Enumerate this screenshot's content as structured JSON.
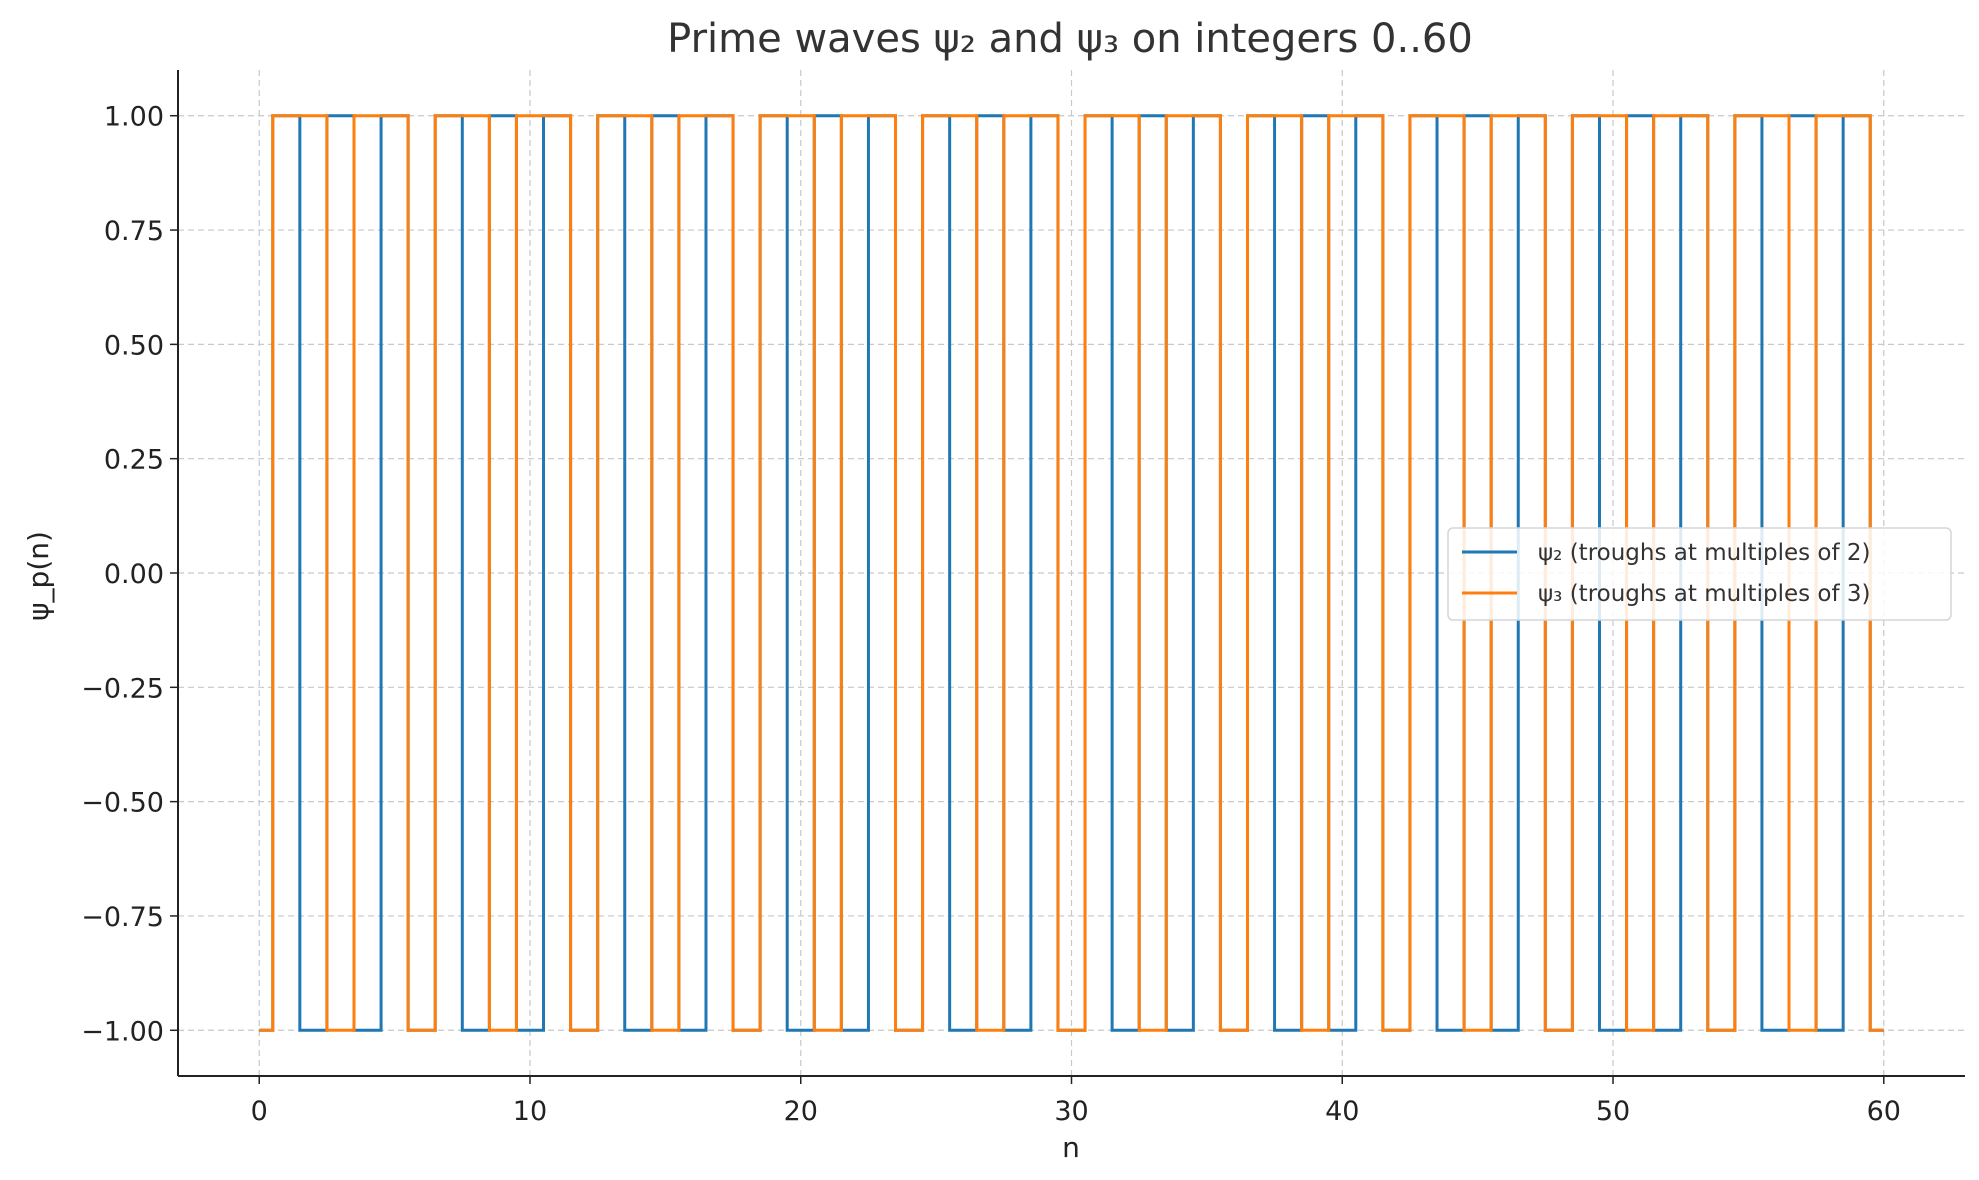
{
  "chart_data": {
    "type": "line",
    "step": "mid",
    "title": "Prime waves ψ₂ and ψ₃ on integers 0..60",
    "xlabel": "n",
    "ylabel": "ψ_p(n)",
    "xlim": [
      -3,
      63
    ],
    "ylim": [
      -1.1,
      1.1
    ],
    "x_ticks": [
      0,
      10,
      20,
      30,
      40,
      50,
      60
    ],
    "x_tick_labels": [
      "0",
      "10",
      "20",
      "30",
      "40",
      "50",
      "60"
    ],
    "y_ticks": [
      1.0,
      0.75,
      0.5,
      0.25,
      0.0,
      -0.25,
      -0.5,
      -0.75,
      -1.0
    ],
    "y_tick_labels": [
      "1.00",
      "0.75",
      "0.50",
      "0.25",
      "0.00",
      "−0.25",
      "−0.50",
      "−0.75",
      "−1.00"
    ],
    "grid": true,
    "legend_position": "center-right",
    "x": [
      0,
      1,
      2,
      3,
      4,
      5,
      6,
      7,
      8,
      9,
      10,
      11,
      12,
      13,
      14,
      15,
      16,
      17,
      18,
      19,
      20,
      21,
      22,
      23,
      24,
      25,
      26,
      27,
      28,
      29,
      30,
      31,
      32,
      33,
      34,
      35,
      36,
      37,
      38,
      39,
      40,
      41,
      42,
      43,
      44,
      45,
      46,
      47,
      48,
      49,
      50,
      51,
      52,
      53,
      54,
      55,
      56,
      57,
      58,
      59,
      60
    ],
    "series": [
      {
        "name": "ψ₂ (troughs at multiples of 2)",
        "color": "#1f77b4",
        "values": [
          -1,
          1,
          -1,
          1,
          -1,
          1,
          -1,
          1,
          -1,
          1,
          -1,
          1,
          -1,
          1,
          -1,
          1,
          -1,
          1,
          -1,
          1,
          -1,
          1,
          -1,
          1,
          -1,
          1,
          -1,
          1,
          -1,
          1,
          -1,
          1,
          -1,
          1,
          -1,
          1,
          -1,
          1,
          -1,
          1,
          -1,
          1,
          -1,
          1,
          -1,
          1,
          -1,
          1,
          -1,
          1,
          -1,
          1,
          -1,
          1,
          -1,
          1,
          -1,
          1,
          -1,
          1,
          -1
        ]
      },
      {
        "name": "ψ₃ (troughs at multiples of 3)",
        "color": "#ff7f0e",
        "values": [
          -1,
          1,
          1,
          -1,
          1,
          1,
          -1,
          1,
          1,
          -1,
          1,
          1,
          -1,
          1,
          1,
          -1,
          1,
          1,
          -1,
          1,
          1,
          -1,
          1,
          1,
          -1,
          1,
          1,
          -1,
          1,
          1,
          -1,
          1,
          1,
          -1,
          1,
          1,
          -1,
          1,
          1,
          -1,
          1,
          1,
          -1,
          1,
          1,
          -1,
          1,
          1,
          -1,
          1,
          1,
          -1,
          1,
          1,
          -1,
          1,
          1,
          -1,
          1,
          1,
          -1
        ]
      }
    ]
  }
}
